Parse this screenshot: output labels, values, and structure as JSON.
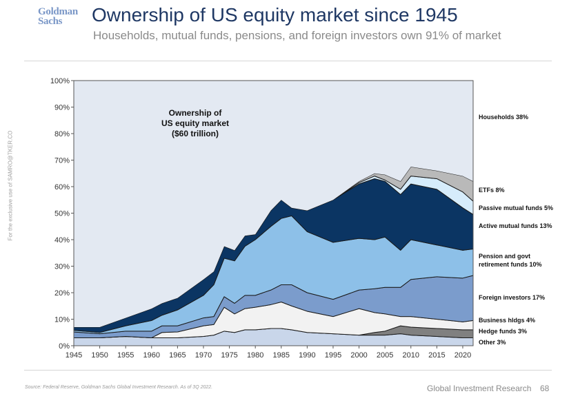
{
  "header": {
    "logo": "Goldman Sachs",
    "logo_line1": "Goldman",
    "logo_line2": "Sachs",
    "title": "Ownership of US equity market since 1945",
    "subtitle": "Households, mutual funds, pensions, and foreign investors own 91% of market"
  },
  "side_note": "For the exclusive use of SAMRO@TKER.CO",
  "footer": {
    "source": "Source: Federal Reserve, Goldman Sachs Global Investment Research. As of 3Q 2022.",
    "brand": "Global Investment Research",
    "page_number": "68"
  },
  "chart_data": {
    "type": "area",
    "stacked": true,
    "annotation": [
      "Ownership of",
      "US equity market",
      "($60 trillion)"
    ],
    "xlim": [
      1945,
      2022
    ],
    "ylim": [
      0,
      100
    ],
    "y_unit": "%",
    "y_ticks": [
      "0%",
      "10%",
      "20%",
      "30%",
      "40%",
      "50%",
      "60%",
      "70%",
      "80%",
      "90%",
      "100%"
    ],
    "x_ticks": [
      "1945",
      "1950",
      "1955",
      "1960",
      "1965",
      "1970",
      "1975",
      "1980",
      "1985",
      "1990",
      "1995",
      "2000",
      "2005",
      "2010",
      "2015",
      "2020"
    ],
    "grid": false,
    "legend_placement": "right (direct labels)",
    "x": [
      1945,
      1950,
      1955,
      1960,
      1962,
      1965,
      1970,
      1972,
      1974,
      1976,
      1978,
      1980,
      1983,
      1985,
      1987,
      1990,
      1995,
      2000,
      2003,
      2005,
      2008,
      2010,
      2015,
      2020,
      2022
    ],
    "series": [
      {
        "name": "Other 3%",
        "color": "#c9d6ea",
        "values": [
          3,
          3,
          3.5,
          3,
          3,
          3,
          3.5,
          4,
          5.5,
          5,
          6,
          6,
          6.5,
          6.5,
          6,
          5,
          4.5,
          4,
          4,
          4,
          4.5,
          4,
          3.5,
          3,
          3
        ]
      },
      {
        "name": "Hedge funds 3%",
        "color": "#808080",
        "values": [
          0,
          0,
          0,
          0,
          0,
          0,
          0,
          0,
          0,
          0,
          0,
          0,
          0,
          0,
          0,
          0,
          0,
          0,
          1,
          1.5,
          3,
          3,
          3,
          3,
          3
        ]
      },
      {
        "name": "Business hldgs 4%",
        "color": "#f2f2f2",
        "values": [
          0,
          0,
          0,
          0,
          2,
          2.2,
          4,
          4,
          9,
          7,
          8,
          8.5,
          9,
          10,
          9,
          8,
          6.5,
          10,
          7.5,
          6.5,
          3.5,
          4,
          3.5,
          3,
          3.5
        ]
      },
      {
        "name": "Foreign investors 17%",
        "color": "#7b9ccc",
        "values": [
          2.2,
          1.5,
          2,
          2.5,
          2.5,
          2.3,
          3,
          3,
          4,
          4,
          5,
          4.5,
          5.5,
          6.5,
          8,
          7,
          6.5,
          7,
          9,
          10,
          11,
          14,
          16,
          16.5,
          17
        ]
      },
      {
        "name": "Pension and govt retirement funds 10%",
        "color": "#8dc0e8",
        "values": [
          0.6,
          0.5,
          2,
          4,
          4,
          6,
          8.5,
          12,
          14.5,
          16,
          18.5,
          21,
          24,
          25,
          26,
          23,
          21.5,
          19.5,
          18.5,
          19,
          14,
          15,
          12,
          10.5,
          10
        ]
      },
      {
        "name": "Active mutual funds 13%",
        "color": "#0b3563",
        "values": [
          1.2,
          2,
          3,
          4.5,
          4.5,
          4.5,
          6,
          5,
          4.5,
          4,
          4,
          2,
          6,
          7,
          3,
          8,
          16,
          20.5,
          23,
          21,
          21,
          21,
          21,
          16,
          13
        ]
      },
      {
        "name": "Passive mutual funds 5%",
        "color": "#d6ecfb",
        "values": [
          0,
          0,
          0,
          0,
          0,
          0,
          0,
          0,
          0,
          0,
          0,
          0,
          0,
          0,
          0,
          0,
          0,
          0.5,
          1,
          0.5,
          2,
          3,
          4,
          6,
          5
        ]
      },
      {
        "name": "ETFs 8%",
        "color": "#b9b9b9",
        "values": [
          0,
          0,
          0,
          0,
          0,
          0,
          0,
          0,
          0,
          0,
          0,
          0,
          0,
          0,
          0,
          0,
          0,
          0.5,
          1,
          2,
          3,
          3.5,
          3,
          6,
          7.5
        ]
      },
      {
        "name": "Households 38%",
        "color": "#e3e9f2",
        "values": [
          93,
          93,
          89.5,
          86,
          84,
          82,
          75,
          72,
          62.5,
          64,
          58.5,
          58,
          49,
          45,
          48,
          49,
          45,
          38,
          35,
          35.5,
          38,
          32.5,
          34,
          36,
          38
        ]
      }
    ],
    "labels": [
      {
        "text": "Households 38%"
      },
      {
        "text": "ETFs 8%"
      },
      {
        "text": "Passive mutual funds 5%"
      },
      {
        "text": "Active mutual funds 13%"
      },
      {
        "text": "Pension and govt",
        "text2": "retirement funds 10%"
      },
      {
        "text": "Foreign investors 17%"
      },
      {
        "text": "Business hldgs 4%"
      },
      {
        "text": "Hedge funds 3%"
      },
      {
        "text": "Other 3%"
      }
    ]
  }
}
